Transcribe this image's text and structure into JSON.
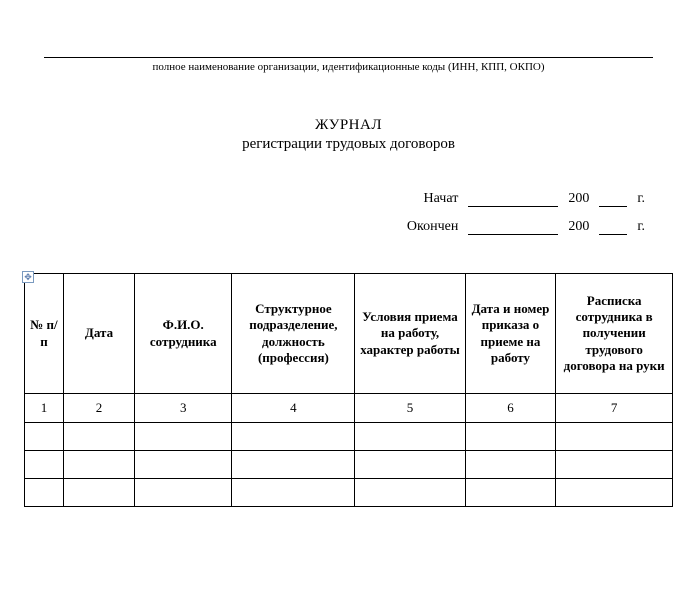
{
  "org": {
    "caption": "полное наименование организации, идентификационные коды (ИНН, КПП, ОКПО)"
  },
  "title": {
    "main": "ЖУРНАЛ",
    "sub": "регистрации трудовых договоров"
  },
  "dates": {
    "started_label": "Начат",
    "finished_label": "Окончен",
    "year_prefix": "200",
    "year_suffix": "г."
  },
  "table": {
    "headers": {
      "c1": "№ п/п",
      "c2": "Дата",
      "c3": "Ф.И.О. сотрудника",
      "c4": "Структурное подразделение, должность (профессия)",
      "c5": "Условия приема на работу, характер работы",
      "c6": "Дата и номер приказа о приеме на работу",
      "c7": "Расписка сотрудника в получении трудового договора на руки"
    },
    "numrow": {
      "c1": "1",
      "c2": "2",
      "c3": "3",
      "c4": "4",
      "c5": "5",
      "c6": "6",
      "c7": "7"
    }
  },
  "styles": {
    "font_family": "Times New Roman",
    "background": "#ffffff",
    "border_color": "#000000",
    "handle_border": "#7a9abf",
    "caption_fontsize": 11,
    "title_fontsize": 15,
    "body_fontsize": 14,
    "table_fontsize": 13
  }
}
